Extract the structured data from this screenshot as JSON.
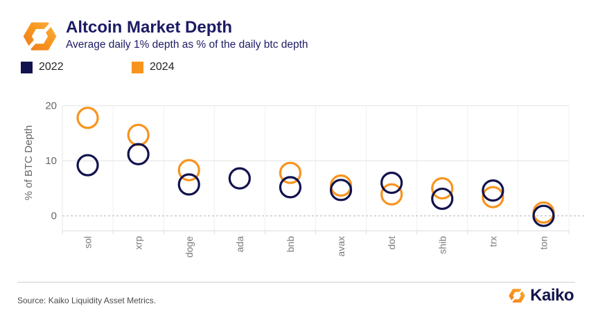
{
  "header": {
    "title": "Altcoin Market Depth",
    "subtitle": "Average daily 1% depth as % of the daily btc depth"
  },
  "legend": {
    "items": [
      {
        "label": "2022",
        "color": "#12124e"
      },
      {
        "label": "2024",
        "color": "#f7941d"
      }
    ]
  },
  "chart_data": {
    "type": "scatter",
    "title": "Altcoin Market Depth",
    "subtitle": "Average daily 1% depth as % of the daily btc depth",
    "categories": [
      "sol",
      "xrp",
      "doge",
      "ada",
      "bnb",
      "avax",
      "dot",
      "shib",
      "trx",
      "ton"
    ],
    "series": [
      {
        "name": "2022",
        "color": "#12124e",
        "values": [
          9.2,
          11.2,
          5.7,
          6.8,
          5.2,
          4.7,
          6.0,
          3.1,
          4.6,
          0.0
        ]
      },
      {
        "name": "2024",
        "color": "#f7941d",
        "values": [
          17.8,
          14.7,
          8.3,
          null,
          7.8,
          5.5,
          3.9,
          5.0,
          3.4,
          0.6
        ]
      }
    ],
    "xlabel": "",
    "ylabel": "% of BTC Depth",
    "yticks": [
      0,
      10,
      20
    ],
    "ylim": [
      -2.5,
      21
    ],
    "grid": "horizontal solid lines at 10 and 20, dashed line at 0, faint vertical category separators",
    "legend_position": "top-left",
    "marker": "open-circle"
  },
  "footer": {
    "source": "Source: Kaiko Liquidity Asset Metrics.",
    "brand": "Kaiko"
  },
  "colors": {
    "navy": "#12124e",
    "orange": "#f7941d",
    "title_navy": "#1b1b64",
    "axis_text": "#666666",
    "category_text": "#7a7a7a"
  }
}
